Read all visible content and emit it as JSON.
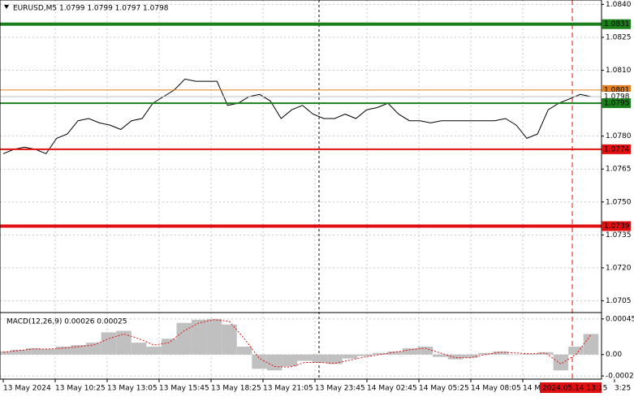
{
  "chart_data": [
    {
      "type": "line",
      "title": "EURUSD,M5 1.0799 1.0799 1.0797 1.0798",
      "x_labels": [
        "13 May 2024",
        "13 May 10:25",
        "13 May 13:05",
        "13 May 15:45",
        "13 May 18:25",
        "13 May 21:05",
        "13 May 23:45",
        "14 May 02:45",
        "14 May 05:25",
        "14 May 08:05",
        "14 M",
        "3:25"
      ],
      "x_cursor_label": "2024.05.14 13:15",
      "series": [
        {
          "color": "#000000",
          "values": [
            1.0772,
            1.0774,
            1.0775,
            1.0774,
            1.0772,
            1.0779,
            1.0781,
            1.0787,
            1.0788,
            1.0786,
            1.0785,
            1.0783,
            1.0787,
            1.0788,
            1.0795,
            1.0798,
            1.0801,
            1.0806,
            1.0805,
            1.0805,
            1.0805,
            1.0794,
            1.0795,
            1.0798,
            1.0799,
            1.0796,
            1.0788,
            1.0792,
            1.0794,
            1.079,
            1.0788,
            1.0788,
            1.079,
            1.0788,
            1.0792,
            1.0793,
            1.0795,
            1.079,
            1.0787,
            1.0787,
            1.0786,
            1.0787,
            1.0787,
            1.0787,
            1.0787,
            1.0787,
            1.0787,
            1.0788,
            1.0785,
            1.0779,
            1.0781,
            1.0792,
            1.0795,
            1.0797,
            1.0799,
            1.0798
          ]
        }
      ],
      "levels": [
        {
          "value": 1.0831,
          "label": "1.0831",
          "color": "#1a7f1a",
          "style": "thick"
        },
        {
          "value": 1.0801,
          "label": "1.0801",
          "color": "#e08020",
          "style": "thin"
        },
        {
          "value": 1.0798,
          "label": "1.0798",
          "color": "#c0c0c0",
          "style": "thin"
        },
        {
          "value": 1.0795,
          "label": "1.0795",
          "color": "#1a7f1a",
          "style": "normal"
        },
        {
          "value": 1.0774,
          "label": "1.0774",
          "color": "#e01010",
          "style": "normal"
        },
        {
          "value": 1.0739,
          "label": "1.0739",
          "color": "#e01010",
          "style": "thick"
        }
      ],
      "ylim": [
        1.07,
        1.0842
      ],
      "yticks": [
        {
          "value": 1.084,
          "label": "1.0840"
        },
        {
          "value": 1.0825,
          "label": "1.0825"
        },
        {
          "value": 1.081,
          "label": "1.0810"
        },
        {
          "value": 1.078,
          "label": "1.0780"
        },
        {
          "value": 1.0765,
          "label": "1.0765"
        },
        {
          "value": 1.075,
          "label": "1.0750"
        },
        {
          "value": 1.0735,
          "label": "1.0735"
        },
        {
          "value": 1.072,
          "label": "1.0720"
        },
        {
          "value": 1.0705,
          "label": "1.0705"
        }
      ],
      "grid": true
    },
    {
      "type": "macd",
      "title": "MACD(12,26,9) 0.00026 0.00025",
      "series": [
        {
          "color": "#c0c0c0",
          "values": [
            4e-05,
            6e-05,
            8e-05,
            7e-05,
            0.0001,
            0.00012,
            0.00015,
            0.00028,
            0.0003,
            0.00015,
            0.0001,
            0.0002,
            0.0004,
            0.00044,
            0.00045,
            0.00038,
            0.0001,
            -0.00018,
            -0.0002,
            -0.00015,
            -8e-05,
            -0.0001,
            -0.00012,
            -5e-05,
            -2e-05,
            2e-05,
            4e-05,
            8e-05,
            0.0001,
            -3e-05,
            -6e-05,
            -4e-05,
            2e-05,
            4e-05,
            0.0,
            1e-05,
            3e-05,
            -0.0002,
            0.0001,
            0.00026
          ]
        },
        {
          "color": "#e01010",
          "values": [
            3e-05,
            5e-05,
            7e-05,
            7e-05,
            8e-05,
            0.0001,
            0.00012,
            0.0002,
            0.00026,
            0.0002,
            0.00012,
            0.00015,
            0.0003,
            0.0004,
            0.00044,
            0.00042,
            0.0002,
            -5e-05,
            -0.00015,
            -0.00016,
            -0.0001,
            -0.0001,
            -0.00011,
            -7e-05,
            -3e-05,
            0.0,
            3e-05,
            6e-05,
            8e-05,
            2e-05,
            -4e-05,
            -4e-05,
            0.0,
            3e-05,
            2e-05,
            1e-05,
            2e-05,
            -0.00012,
            0.0,
            0.00025
          ]
        }
      ],
      "ylim": [
        -0.0003,
        0.00052
      ],
      "yticks": [
        0.00045,
        {
          "value": 0,
          "label": "0.00"
        },
        -0.00027
      ],
      "grid": true
    }
  ]
}
